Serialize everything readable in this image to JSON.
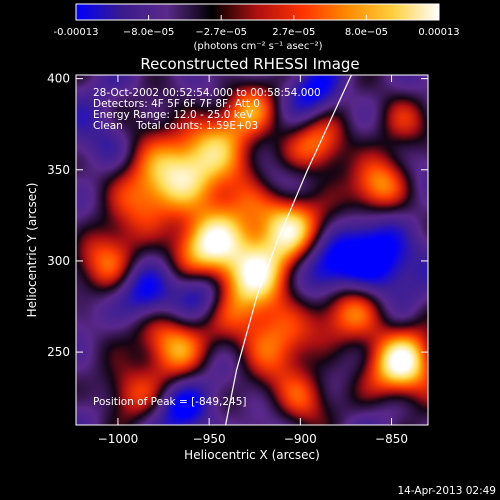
{
  "colorbar": {
    "tick_labels": [
      "-0.00013",
      "−8.0e−05",
      "−2.7e−05",
      "2.7e−05",
      "8.0e−05",
      "0.00013"
    ],
    "unit_label": "(photons cm⁻² s⁻¹ asec⁻²)",
    "colors": [
      "#0000ff",
      "#3a1a8c",
      "#5a2a8a",
      "#000000",
      "#b01010",
      "#ff3300",
      "#ff8c00",
      "#ffd040",
      "#ffffff"
    ]
  },
  "annotations": {
    "time_range": "28-Oct-2002 00:52:54.000 to 00:58:54.000",
    "detectors": "Detectors: 4F 5F 6F 7F 8F, Att 0",
    "energy_range": "Energy Range: 12.0 - 25.0 keV",
    "method_counts": "Clean    Total counts: 1.59E+03",
    "peak_position": "Position of Peak = [-849,245]"
  },
  "footer": {
    "date": "14-Apr-2013 02:49"
  },
  "chart_data": {
    "type": "heatmap",
    "title": "Reconstructed RHESSI Image",
    "xlabel": "Heliocentric X (arcsec)",
    "ylabel": "Heliocentric Y (arcsec)",
    "xlim": [
      -1023,
      -830
    ],
    "ylim": [
      210,
      402
    ],
    "x_ticks": [
      -1000,
      -950,
      -900,
      -850
    ],
    "y_ticks": [
      250,
      300,
      350,
      400
    ],
    "x_tick_labels": [
      "−1000",
      "−950",
      "−900",
      "−850"
    ],
    "y_tick_labels": [
      "250",
      "300",
      "350",
      "400"
    ],
    "value_range": [
      -0.00013,
      0.00013
    ],
    "limb_line": [
      [
        -941,
        210
      ],
      [
        -935,
        240
      ],
      [
        -924,
        280
      ],
      [
        -913,
        310
      ],
      [
        -896,
        350
      ],
      [
        -872,
        402
      ]
    ],
    "peak": [
      -849,
      245
    ]
  }
}
